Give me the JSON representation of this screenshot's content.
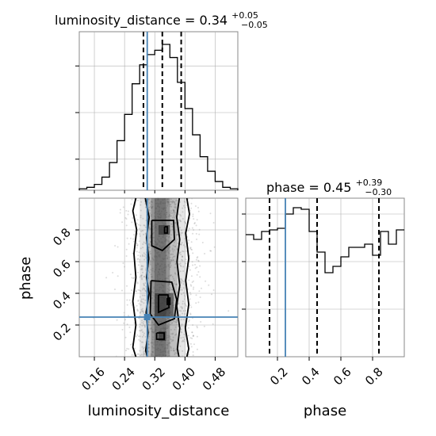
{
  "chart_data": [
    {
      "type": "histogram",
      "panel": "luminosity_distance marginal",
      "title": {
        "prefix": "luminosity_distance = 0.34",
        "plus": "+0.05",
        "minus": "−0.05"
      },
      "x": {
        "ylim": [
          0.1,
          0.54
        ]
      },
      "bin_edges": [
        0.12,
        0.14,
        0.16,
        0.18,
        0.2,
        0.22,
        0.24,
        0.26,
        0.28,
        0.3,
        0.32,
        0.34,
        0.36,
        0.38,
        0.4,
        0.42,
        0.44,
        0.46,
        0.48,
        0.5,
        0.52,
        0.54
      ],
      "heights": [
        0.01,
        0.02,
        0.04,
        0.09,
        0.19,
        0.34,
        0.52,
        0.73,
        0.86,
        0.93,
        0.96,
        1.0,
        0.91,
        0.74,
        0.56,
        0.38,
        0.23,
        0.13,
        0.06,
        0.02,
        0.01
      ],
      "quantile_lines": [
        0.29,
        0.34,
        0.39
      ],
      "truth": 0.3
    },
    {
      "type": "histogram",
      "panel": "phase marginal",
      "title": {
        "prefix": "phase = 0.45",
        "plus": "+0.39",
        "minus": "−0.30"
      },
      "xlim": [
        0.0,
        1.0
      ],
      "bin_edges": [
        0.0,
        0.05,
        0.1,
        0.15,
        0.2,
        0.25,
        0.3,
        0.35,
        0.4,
        0.45,
        0.5,
        0.55,
        0.6,
        0.65,
        0.7,
        0.75,
        0.8,
        0.85,
        0.9,
        0.95,
        1.0
      ],
      "heights": [
        0.77,
        0.74,
        0.79,
        0.8,
        0.81,
        0.9,
        0.94,
        0.93,
        0.79,
        0.66,
        0.53,
        0.57,
        0.63,
        0.69,
        0.69,
        0.71,
        0.64,
        0.79,
        0.71,
        0.8
      ],
      "quantile_lines": [
        0.15,
        0.45,
        0.84
      ],
      "truth": 0.25
    },
    {
      "type": "scatter-contour",
      "panel": "luminosity_distance vs phase",
      "xlabel": "luminosity_distance",
      "ylabel": "phase",
      "xlim": [
        0.12,
        0.54
      ],
      "ylim": [
        0.0,
        1.0
      ],
      "xticks": [
        "0.16",
        "0.24",
        "0.32",
        "0.40",
        "0.48"
      ],
      "yticks": [
        "0.2",
        "0.4",
        "0.6",
        "0.8"
      ],
      "truth": {
        "x": 0.3,
        "y": 0.25
      }
    }
  ],
  "phase_axis": {
    "xlabel": "phase",
    "xticks": [
      "0.2",
      "0.4",
      "0.6",
      "0.8"
    ]
  },
  "colors": {
    "truth": "#4682b4",
    "line": "#000000",
    "grid": "#b0b0b0",
    "scatter": "#9a9a9a"
  }
}
